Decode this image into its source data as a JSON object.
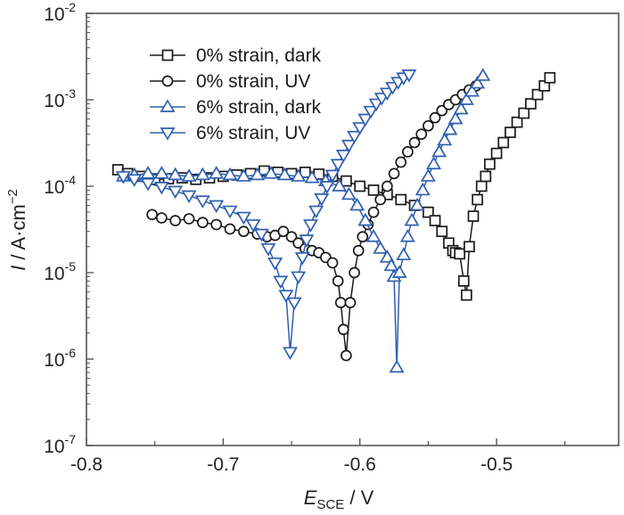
{
  "chart_data": {
    "type": "scatter",
    "title": "",
    "xlabel": {
      "main": "E",
      "sub": "SCE",
      "rest": " / V"
    },
    "ylabel": {
      "main": "I",
      "rest": " / A·cm",
      "sup": "−2"
    },
    "xlim": [
      -0.8,
      -0.4107
    ],
    "ylim_log10": [
      -7,
      -2
    ],
    "yscale": "log",
    "grid": false,
    "legend_position": "top-left",
    "x_ticks": [
      {
        "value": -0.8,
        "label": "-0.8"
      },
      {
        "value": -0.7,
        "label": "-0.7"
      },
      {
        "value": -0.6,
        "label": "-0.6"
      },
      {
        "value": -0.5,
        "label": "-0.5"
      }
    ],
    "x_minor_ticks": [
      -0.75,
      -0.65,
      -0.55,
      -0.45
    ],
    "y_ticks": [
      {
        "exp": -2,
        "base": "10",
        "sup": "-2"
      },
      {
        "exp": -3,
        "base": "10",
        "sup": "-3"
      },
      {
        "exp": -4,
        "base": "10",
        "sup": "-4"
      },
      {
        "exp": -5,
        "base": "10",
        "sup": "-5"
      },
      {
        "exp": -6,
        "base": "10",
        "sup": "-6"
      },
      {
        "exp": -7,
        "base": "10",
        "sup": "-7"
      }
    ],
    "series": [
      {
        "name": "0% strain, dark",
        "marker": "square",
        "color": "#1a1a1a",
        "x": [
          -0.777,
          -0.77,
          -0.76,
          -0.75,
          -0.74,
          -0.73,
          -0.72,
          -0.71,
          -0.7,
          -0.69,
          -0.68,
          -0.67,
          -0.66,
          -0.65,
          -0.64,
          -0.63,
          -0.62,
          -0.61,
          -0.6,
          -0.59,
          -0.58,
          -0.57,
          -0.56,
          -0.55,
          -0.545,
          -0.54,
          -0.535,
          -0.532,
          -0.53,
          -0.527,
          -0.524,
          -0.522,
          -0.52,
          -0.517,
          -0.514,
          -0.511,
          -0.508,
          -0.505,
          -0.5,
          -0.495,
          -0.49,
          -0.485,
          -0.48,
          -0.475,
          -0.47,
          -0.465,
          -0.461
        ],
        "y": [
          0.000155,
          0.00014,
          0.00013,
          0.00012,
          0.000122,
          0.000125,
          0.00012,
          0.000125,
          0.00013,
          0.000135,
          0.00014,
          0.00015,
          0.000145,
          0.00014,
          0.000145,
          0.000138,
          0.00013,
          0.000115,
          0.0001,
          9e-05,
          8e-05,
          7e-05,
          6e-05,
          5e-05,
          4e-05,
          3e-05,
          2.2e-05,
          1.8e-05,
          1.7e-05,
          1.65e-05,
          8e-06,
          5.5e-06,
          2e-05,
          4.5e-05,
          7e-05,
          0.0001,
          0.00013,
          0.00018,
          0.00024,
          0.00032,
          0.00042,
          0.00055,
          0.0007,
          0.0009,
          0.00115,
          0.00145,
          0.0018
        ]
      },
      {
        "name": "0% strain, UV",
        "marker": "circle",
        "color": "#1a1a1a",
        "x": [
          -0.752,
          -0.745,
          -0.735,
          -0.725,
          -0.715,
          -0.705,
          -0.695,
          -0.685,
          -0.675,
          -0.668,
          -0.662,
          -0.656,
          -0.65,
          -0.645,
          -0.64,
          -0.635,
          -0.63,
          -0.625,
          -0.62,
          -0.616,
          -0.614,
          -0.612,
          -0.61,
          -0.607,
          -0.604,
          -0.601,
          -0.598,
          -0.594,
          -0.59,
          -0.585,
          -0.58,
          -0.575,
          -0.57,
          -0.565,
          -0.56,
          -0.555,
          -0.55,
          -0.545,
          -0.54,
          -0.535,
          -0.53,
          -0.525,
          -0.52,
          -0.515
        ],
        "y": [
          4.7e-05,
          4.3e-05,
          4e-05,
          4.2e-05,
          3.8e-05,
          3.6e-05,
          3.2e-05,
          3e-05,
          2.8e-05,
          2.6e-05,
          2.7e-05,
          3e-05,
          2.6e-05,
          2.2e-05,
          1.9e-05,
          1.8e-05,
          1.7e-05,
          1.5e-05,
          1.3e-05,
          8e-06,
          4.5e-06,
          2.2e-06,
          1.1e-06,
          4.5e-06,
          1e-05,
          1.8e-05,
          2.6e-05,
          3.6e-05,
          5e-05,
          7e-05,
          0.0001,
          0.00014,
          0.00019,
          0.00025,
          0.00032,
          0.0004,
          0.0005,
          0.00062,
          0.00075,
          0.00088,
          0.001,
          0.00115,
          0.0013,
          0.00145
        ]
      },
      {
        "name": "6% strain, dark",
        "marker": "triangle-up",
        "color": "#2f5faf",
        "x": [
          -0.773,
          -0.765,
          -0.755,
          -0.745,
          -0.735,
          -0.725,
          -0.715,
          -0.705,
          -0.695,
          -0.685,
          -0.675,
          -0.665,
          -0.655,
          -0.645,
          -0.635,
          -0.625,
          -0.615,
          -0.608,
          -0.602,
          -0.596,
          -0.59,
          -0.585,
          -0.58,
          -0.577,
          -0.575,
          -0.573,
          -0.571,
          -0.568,
          -0.565,
          -0.562,
          -0.558,
          -0.554,
          -0.55,
          -0.546,
          -0.542,
          -0.538,
          -0.534,
          -0.53,
          -0.526,
          -0.522,
          -0.518,
          -0.514,
          -0.51
        ],
        "y": [
          0.00013,
          0.000135,
          0.00014,
          0.00014,
          0.000135,
          0.00013,
          0.000135,
          0.00014,
          0.000135,
          0.00013,
          0.000135,
          0.00014,
          0.000135,
          0.00013,
          0.000125,
          0.000115,
          0.0001,
          8e-05,
          6e-05,
          4e-05,
          2.6e-05,
          1.9e-05,
          1.5e-05,
          1.2e-05,
          9e-06,
          8e-07,
          1e-05,
          1.6e-05,
          2.6e-05,
          4e-05,
          6e-05,
          9e-05,
          0.00013,
          0.00018,
          0.00025,
          0.00034,
          0.00045,
          0.0006,
          0.00078,
          0.001,
          0.00125,
          0.00155,
          0.0019
        ]
      },
      {
        "name": "6% strain, UV",
        "marker": "triangle-down",
        "color": "#2f5faf",
        "x": [
          -0.773,
          -0.765,
          -0.755,
          -0.745,
          -0.735,
          -0.725,
          -0.715,
          -0.705,
          -0.695,
          -0.685,
          -0.678,
          -0.672,
          -0.667,
          -0.662,
          -0.658,
          -0.654,
          -0.651,
          -0.648,
          -0.645,
          -0.642,
          -0.639,
          -0.636,
          -0.632,
          -0.628,
          -0.624,
          -0.62,
          -0.616,
          -0.612,
          -0.608,
          -0.604,
          -0.6,
          -0.596,
          -0.592,
          -0.588,
          -0.584,
          -0.58,
          -0.576,
          -0.572,
          -0.568,
          -0.564
        ],
        "y": [
          0.00013,
          0.00012,
          0.000108,
          9.8e-05,
          8.8e-05,
          7.8e-05,
          6.8e-05,
          6e-05,
          5.2e-05,
          4.4e-05,
          3.6e-05,
          2.8e-05,
          1.9e-05,
          1.3e-05,
          8e-06,
          5.5e-06,
          1.2e-06,
          4.5e-06,
          9e-06,
          1.5e-05,
          2.4e-05,
          3.6e-05,
          5.2e-05,
          7.2e-05,
          0.0001,
          0.000135,
          0.00018,
          0.00023,
          0.0003,
          0.00038,
          0.00048,
          0.0006,
          0.00074,
          0.0009,
          0.00105,
          0.0012,
          0.0014,
          0.0016,
          0.0018,
          0.00195
        ]
      }
    ]
  }
}
